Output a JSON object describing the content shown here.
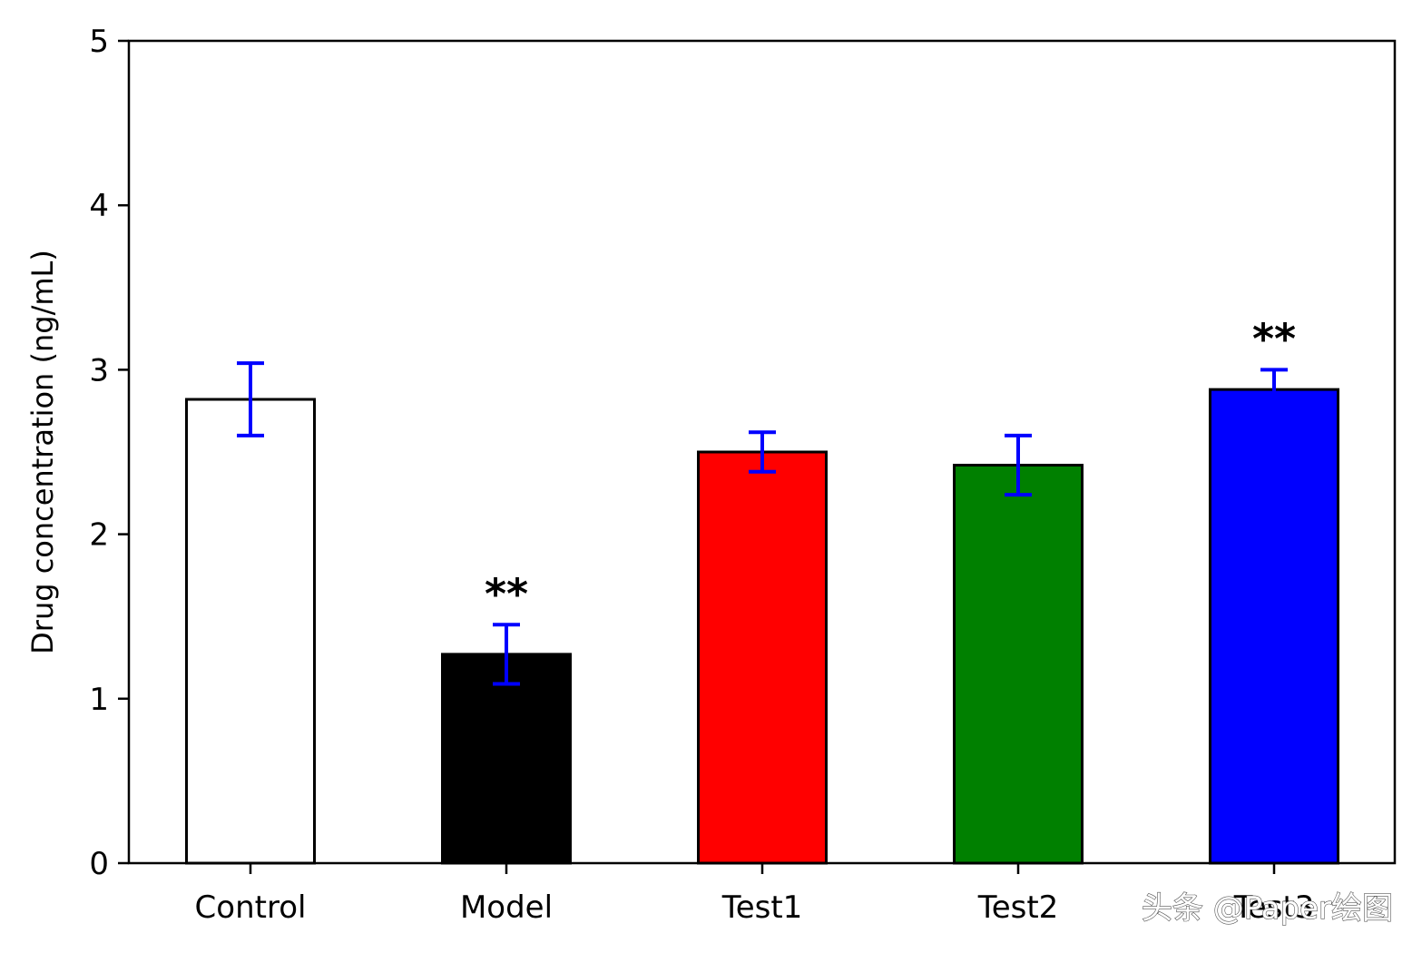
{
  "chart_data": {
    "type": "bar",
    "categories": [
      "Control",
      "Model",
      "Test1",
      "Test2",
      "Test3"
    ],
    "values": [
      2.82,
      1.27,
      2.5,
      2.42,
      2.88
    ],
    "errors": [
      0.22,
      0.18,
      0.12,
      0.18,
      0.12
    ],
    "colors": [
      "#ffffff",
      "#000000",
      "#ff0000",
      "#008000",
      "#0000ff"
    ],
    "edge_color": "#000000",
    "error_color": "#0000ff",
    "significance": [
      "",
      "**",
      "",
      "",
      "**"
    ],
    "title": "",
    "xlabel": "",
    "ylabel": "Drug concentration (ng/mL)",
    "ylim": [
      0,
      5
    ],
    "yticks": [
      "0",
      "1",
      "2",
      "3",
      "4",
      "5"
    ],
    "grid": false
  },
  "watermark": "头条 @Paper绘图"
}
